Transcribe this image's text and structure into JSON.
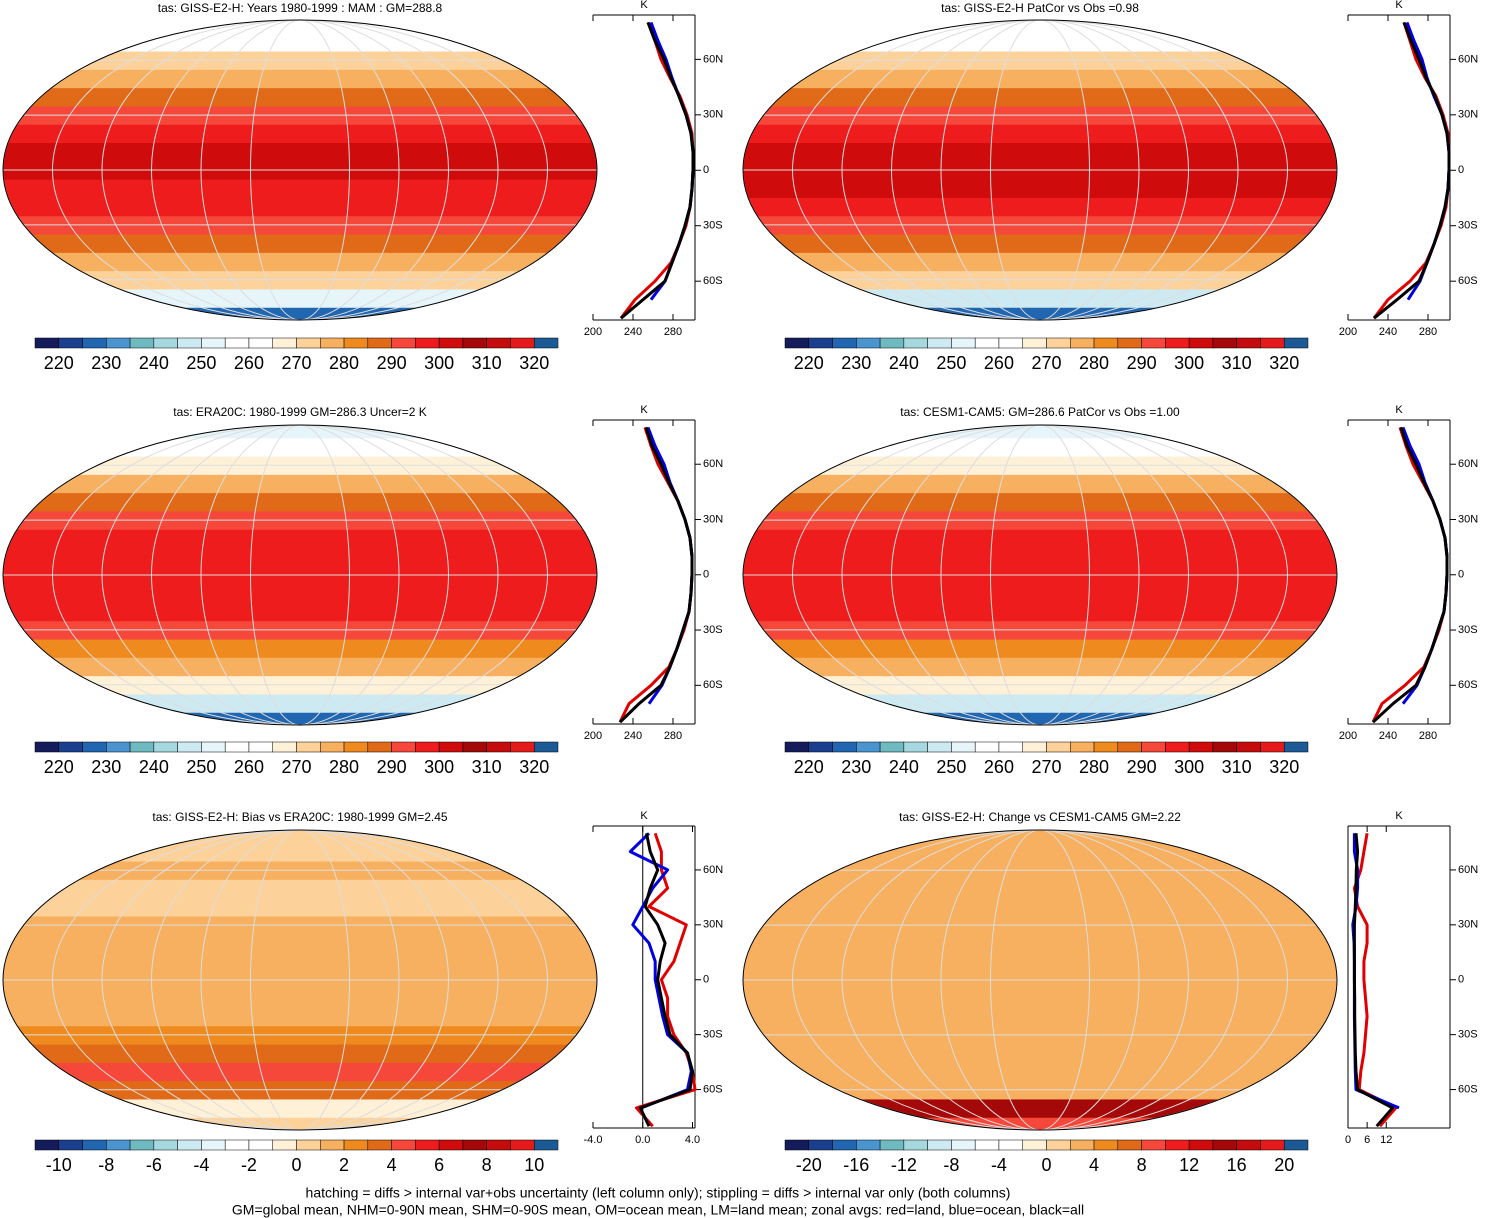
{
  "palette": [
    "#141c5c",
    "#1b3f8f",
    "#2166b0",
    "#4a94d0",
    "#6fbac0",
    "#a6d8e0",
    "#cdeaf2",
    "#e6f5fa",
    "#ffffff",
    "#ffffff",
    "#fff0d8",
    "#fcd29a",
    "#f7b060",
    "#ef8a1e",
    "#e06a18",
    "#f5473a",
    "#ee1c1c",
    "#cf0b0b",
    "#a50808",
    "#c40c0c",
    "#e51a1a",
    "#1c5a96"
  ],
  "zonal_lat": [
    -80,
    -70,
    -60,
    -50,
    -40,
    -30,
    -20,
    -10,
    0,
    10,
    20,
    30,
    40,
    50,
    60,
    70,
    80
  ],
  "panels": [
    {
      "title": "tas: GISS-E2-H: Years 1980-1999 : MAM : GM=288.8",
      "colorbar": {
        "ticks": [
          220,
          230,
          240,
          250,
          260,
          270,
          280,
          290,
          300,
          310,
          320
        ]
      },
      "zonal": {
        "unit": "K",
        "xlim": [
          200,
          302
        ],
        "xticks": [
          200,
          240,
          280
        ],
        "ylim": [
          -81,
          84
        ],
        "yticks": [
          {
            "value": 60,
            "label": "60N"
          },
          {
            "value": 30,
            "label": "30N"
          },
          0,
          {
            "value": -30,
            "label": "30S"
          },
          {
            "value": -60,
            "label": "60S"
          }
        ],
        "series": [
          {
            "color": "#e00000",
            "values": [
              228,
              242,
              262,
              278,
              286,
              293,
              297,
              299,
              300,
              300,
              299,
              294,
              287,
              277,
              268,
              262,
              255
            ]
          },
          {
            "color": "#0000e0",
            "values": [
              null,
              258,
              272,
              279,
              286,
              292,
              297,
              299,
              300,
              300,
              298,
              293,
              286,
              279,
              273,
              265,
              258
            ]
          },
          {
            "color": "#000000",
            "values": [
              228,
              250,
              272,
              279,
              286,
              292,
              297,
              299,
              300,
              300,
              298,
              293,
              286,
              278,
              271,
              262,
              255
            ]
          }
        ]
      }
    },
    {
      "title": "tas: GISS-E2-H PatCor vs Obs =0.98",
      "colorbar": {
        "ticks": [
          220,
          230,
          240,
          250,
          260,
          270,
          280,
          290,
          300,
          310,
          320
        ]
      },
      "zonal": {
        "unit": "K",
        "xlim": [
          200,
          302
        ],
        "xticks": [
          200,
          240,
          280
        ],
        "ylim": [
          -81,
          84
        ],
        "yticks": [
          {
            "value": 60,
            "label": "60N"
          },
          {
            "value": 30,
            "label": "30N"
          },
          0,
          {
            "value": -30,
            "label": "30S"
          },
          {
            "value": -60,
            "label": "60S"
          }
        ],
        "series": [
          {
            "color": "#e00000",
            "values": [
              226,
              240,
              262,
              278,
              286,
              293,
              298,
              300,
              301,
              301,
              300,
              295,
              288,
              277,
              268,
              262,
              256
            ]
          },
          {
            "color": "#0000e0",
            "values": [
              null,
              260,
              272,
              279,
              286,
              292,
              297,
              300,
              301,
              301,
              299,
              294,
              286,
              279,
              274,
              266,
              259
            ]
          },
          {
            "color": "#000000",
            "values": [
              226,
              249,
              271,
              279,
              286,
              292,
              297,
              300,
              301,
              301,
              299,
              294,
              287,
              278,
              271,
              263,
              256
            ]
          }
        ]
      }
    },
    {
      "title": "tas: ERA20C: 1980-1999 GM=286.3 Uncer=2 K",
      "colorbar": {
        "ticks": [
          220,
          230,
          240,
          250,
          260,
          270,
          280,
          290,
          300,
          310,
          320
        ]
      },
      "zonal": {
        "unit": "K",
        "xlim": [
          200,
          302
        ],
        "xticks": [
          200,
          240,
          280
        ],
        "ylim": [
          -81,
          84
        ],
        "yticks": [
          {
            "value": 60,
            "label": "60N"
          },
          {
            "value": 30,
            "label": "30N"
          },
          0,
          {
            "value": -30,
            "label": "30S"
          },
          {
            "value": -60,
            "label": "60S"
          }
        ],
        "series": [
          {
            "color": "#e00000",
            "values": [
              227,
              236,
              258,
              276,
              284,
              291,
              296,
              298,
              299,
              299,
              297,
              292,
              285,
              275,
              265,
              258,
              252
            ]
          },
          {
            "color": "#0000e0",
            "values": [
              null,
              256,
              269,
              277,
              284,
              290,
              296,
              298,
              299,
              299,
              297,
              292,
              285,
              277,
              271,
              262,
              255
            ]
          },
          {
            "color": "#000000",
            "values": [
              227,
              246,
              268,
              277,
              284,
              290,
              296,
              298,
              299,
              299,
              297,
              292,
              285,
              276,
              268,
              259,
              253
            ]
          }
        ]
      }
    },
    {
      "title": "tas: CESM1-CAM5: GM=286.6 PatCor vs Obs =1.00",
      "colorbar": {
        "ticks": [
          220,
          230,
          240,
          250,
          260,
          270,
          280,
          290,
          300,
          310,
          320
        ]
      },
      "zonal": {
        "unit": "K",
        "xlim": [
          200,
          302
        ],
        "xticks": [
          200,
          240,
          280
        ],
        "ylim": [
          -81,
          84
        ],
        "yticks": [
          {
            "value": 60,
            "label": "60N"
          },
          {
            "value": 30,
            "label": "30N"
          },
          0,
          {
            "value": -30,
            "label": "30S"
          },
          {
            "value": -60,
            "label": "60S"
          }
        ],
        "series": [
          {
            "color": "#e00000",
            "values": [
              225,
              234,
              257,
              276,
              284,
              291,
              296,
              298,
              299,
              299,
              297,
              292,
              285,
              275,
              265,
              258,
              252
            ]
          },
          {
            "color": "#0000e0",
            "values": [
              null,
              255,
              269,
              277,
              284,
              290,
              296,
              298,
              299,
              299,
              297,
              292,
              285,
              277,
              271,
              262,
              255
            ]
          },
          {
            "color": "#000000",
            "values": [
              225,
              245,
              268,
              277,
              284,
              290,
              296,
              298,
              299,
              299,
              297,
              292,
              285,
              276,
              268,
              259,
              253
            ]
          }
        ]
      }
    },
    {
      "title": "tas: GISS-E2-H: Bias vs ERA20C: 1980-1999 GM=2.45",
      "colorbar": {
        "ticks": [
          -10,
          -8,
          -6,
          -4,
          -2,
          0,
          2,
          4,
          6,
          8,
          10
        ]
      },
      "zonal": {
        "unit": "K",
        "xlim": [
          -4,
          4.2
        ],
        "xticks": [
          {
            "value": -4,
            "label": "-4.0"
          },
          {
            "value": 0,
            "label": "0.0"
          },
          {
            "value": 4,
            "label": "4.0"
          }
        ],
        "ylim": [
          -81,
          84
        ],
        "yticks": [
          {
            "value": 60,
            "label": "60N"
          },
          {
            "value": 30,
            "label": "30N"
          },
          0,
          {
            "value": -30,
            "label": "30S"
          },
          {
            "value": -60,
            "label": "60S"
          }
        ],
        "series": [
          {
            "color": "#e00000",
            "values": [
              0.8,
              -0.5,
              4.2,
              4,
              3.5,
              2.5,
              2,
              2,
              1.5,
              2.5,
              3,
              3.5,
              0.5,
              2,
              1.5,
              1.5,
              1
            ]
          },
          {
            "color": "#0000e0",
            "values": [
              null,
              -0.1,
              3.6,
              3.9,
              3.6,
              2,
              1.6,
              1.3,
              1,
              1,
              0.5,
              -0.8,
              0,
              0.8,
              2,
              -1,
              0.5
            ]
          },
          {
            "color": "#000000",
            "values": [
              0.5,
              -0.2,
              3.8,
              4,
              3.6,
              2.2,
              1.8,
              1.5,
              1.2,
              1.4,
              1.8,
              1.2,
              0.2,
              0.6,
              1.2,
              0.6,
              0.3
            ]
          }
        ]
      }
    },
    {
      "title": "tas: GISS-E2-H: Change vs CESM1-CAM5 GM=2.22",
      "colorbar": {
        "ticks": [
          -20,
          -16,
          -12,
          -8,
          -4,
          0,
          4,
          8,
          12,
          16,
          20
        ]
      },
      "zonal": {
        "unit": "K",
        "xlim": [
          0,
          32
        ],
        "xticks": [
          0,
          6,
          12
        ],
        "ylim": [
          -81,
          84
        ],
        "yticks": [
          {
            "value": 60,
            "label": "60N"
          },
          {
            "value": 30,
            "label": "30N"
          },
          0,
          {
            "value": -30,
            "label": "30S"
          },
          {
            "value": -60,
            "label": "60S"
          }
        ],
        "series": [
          {
            "color": "#e00000",
            "values": [
              10,
              15,
              3.5,
              4,
              5,
              5.5,
              6,
              5.5,
              5,
              5,
              6,
              6,
              3,
              2,
              4,
              5,
              6
            ]
          },
          {
            "color": "#0000e0",
            "values": [
              null,
              16,
              2.5,
              2.3,
              2.2,
              2.1,
              2,
              2,
              2,
              2,
              1.9,
              1.5,
              2.5,
              3,
              3,
              2,
              2
            ]
          },
          {
            "color": "#000000",
            "values": [
              9,
              14,
              3,
              2.5,
              2.3,
              2.2,
              2.1,
              2.1,
              2,
              2,
              2,
              2,
              2.3,
              2.5,
              2.6,
              3,
              2.5
            ]
          }
        ]
      }
    }
  ],
  "footnote": [
    "hatching = diffs > internal var+obs uncertainty (left column only); stippling = diffs > internal var only (both columns)",
    "GM=global mean, NHM=0-90N mean, SHM=0-90S mean, OM=ocean mean, LM=land mean; zonal avgs: red=land, blue=ocean, black=all"
  ]
}
